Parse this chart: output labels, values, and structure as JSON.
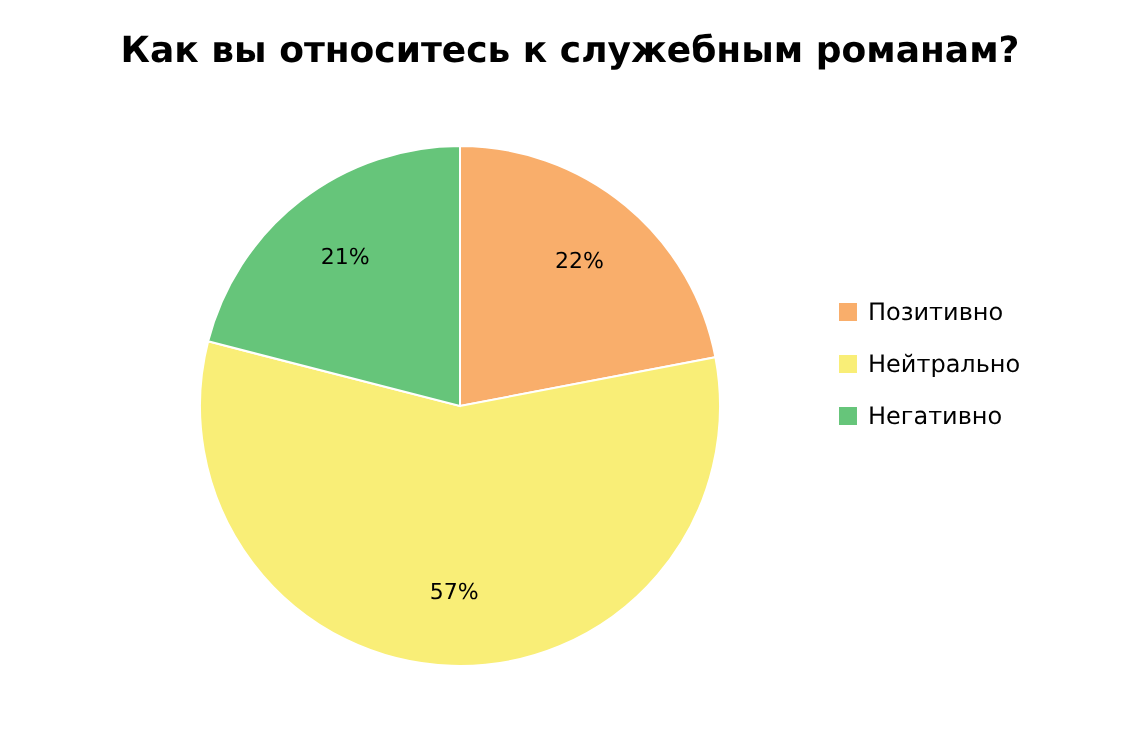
{
  "chart_data": {
    "type": "pie",
    "title": "Как вы относитесь к служебным романам?",
    "categories": [
      "Позитивно",
      "Нейтрально",
      "Негативно"
    ],
    "values": [
      22,
      57,
      21
    ],
    "colors": [
      "#f9ae6b",
      "#f9ee77",
      "#66c57a"
    ],
    "value_labels": [
      "22%",
      "57%",
      "21%"
    ],
    "legend": "right"
  }
}
